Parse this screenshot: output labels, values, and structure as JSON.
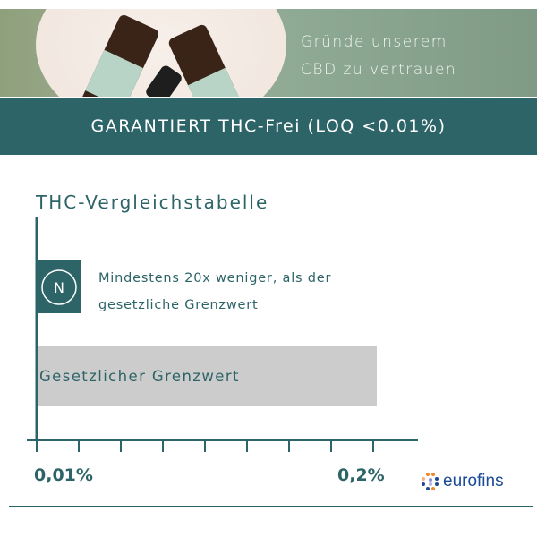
{
  "banner": {
    "line1": "Gründe unserem",
    "line2": "CBD zu vertrauen"
  },
  "band": {
    "text": "GARANTIERT THC-Frei (LOQ <0.01%)"
  },
  "chart_data": {
    "type": "bar",
    "title": "THC-Vergleichstabelle",
    "orientation": "horizontal",
    "categories": [
      "N",
      "Gesetzlicher Grenzwert"
    ],
    "values": [
      0.01,
      0.2
    ],
    "unit": "%",
    "annotation": "Mindestens 20x weniger, als der gesetzliche Grenzwert",
    "annotation_line2": "gesetzliche Grenzwert",
    "annotation_line1": "Mindestens 20x weniger, als der",
    "badge": "N",
    "tick_labels": [
      "0,01%",
      "0,2%"
    ],
    "xlim": [
      0,
      0.2
    ],
    "colors": {
      "product": "#2d6468",
      "limit": "#cccccc",
      "axis": "#2d6468"
    }
  },
  "logo": {
    "text": "eurofins"
  }
}
